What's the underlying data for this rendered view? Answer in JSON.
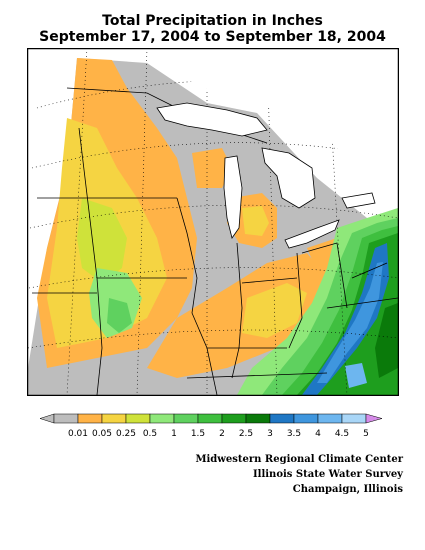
{
  "title": {
    "line1": "Total Precipitation in Inches",
    "line2": "September 17, 2004 to September 18, 2004"
  },
  "legend": {
    "labels": [
      "0.01",
      "0.05",
      "0.25",
      "0.5",
      "1",
      "1.5",
      "2",
      "2.5",
      "3",
      "3.5",
      "4",
      "4.5",
      "5"
    ],
    "colors": [
      "#bdbdbd",
      "#ffb347",
      "#f5d442",
      "#cfe23a",
      "#8fe87a",
      "#5fd15f",
      "#3fbf3f",
      "#1e9e1e",
      "#0a7a0a",
      "#1f77c4",
      "#3f96de",
      "#6db6ef",
      "#a9d6f7"
    ],
    "overflow_color": "#d58be8"
  },
  "credits": {
    "line1": "Midwestern Regional Climate Center",
    "line2": "Illinois State Water Survey",
    "line3": "Champaign, Illinois"
  },
  "map_colors": {
    "none": "#bdbdbd",
    "c001": "#ffb347",
    "c005": "#f5d442",
    "c025": "#cfe23a",
    "c05": "#8fe87a",
    "c1": "#5fd15f",
    "c15": "#3fbf3f",
    "c2": "#1e9e1e",
    "c25": "#0a7a0a",
    "c3": "#1f77c4",
    "c35": "#3f96de",
    "c4": "#6db6ef"
  }
}
